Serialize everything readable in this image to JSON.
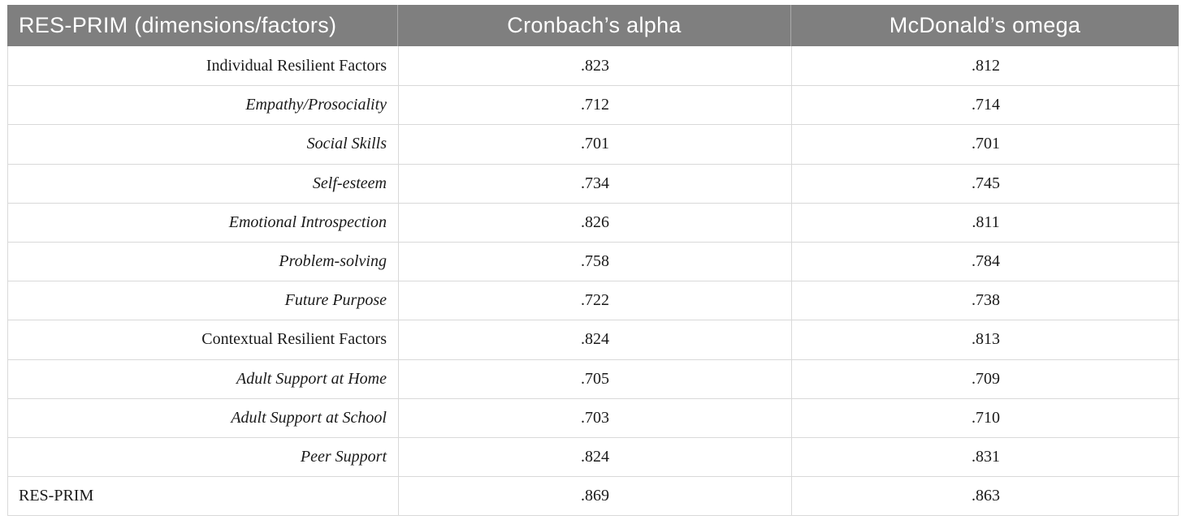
{
  "table": {
    "columns": [
      {
        "label": "RES-PRIM (dimensions/factors)"
      },
      {
        "label": "Cronbach’s alpha"
      },
      {
        "label": "McDonald’s omega"
      }
    ],
    "rows": [
      {
        "label": "Individual Resilient Factors",
        "italic": false,
        "align": "right",
        "alpha": ".823",
        "omega": ".812"
      },
      {
        "label": "Empathy/Prosociality",
        "italic": true,
        "align": "right",
        "alpha": ".712",
        "omega": ".714"
      },
      {
        "label": "Social Skills",
        "italic": true,
        "align": "right",
        "alpha": ".701",
        "omega": ".701"
      },
      {
        "label": "Self-esteem",
        "italic": true,
        "align": "right",
        "alpha": ".734",
        "omega": ".745"
      },
      {
        "label": "Emotional Introspection",
        "italic": true,
        "align": "right",
        "alpha": ".826",
        "omega": ".811"
      },
      {
        "label": "Problem-solving",
        "italic": true,
        "align": "right",
        "alpha": ".758",
        "omega": ".784"
      },
      {
        "label": "Future Purpose",
        "italic": true,
        "align": "right",
        "alpha": ".722",
        "omega": ".738"
      },
      {
        "label": "Contextual Resilient Factors",
        "italic": false,
        "align": "right",
        "alpha": ".824",
        "omega": ".813"
      },
      {
        "label": "Adult Support at Home",
        "italic": true,
        "align": "right",
        "alpha": ".705",
        "omega": ".709"
      },
      {
        "label": "Adult Support at School",
        "italic": true,
        "align": "right",
        "alpha": ".703",
        "omega": ".710"
      },
      {
        "label": "Peer Support",
        "italic": true,
        "align": "right",
        "alpha": ".824",
        "omega": ".831"
      },
      {
        "label": "RES-PRIM",
        "italic": false,
        "align": "left",
        "alpha": ".869",
        "omega": ".863"
      }
    ],
    "colors": {
      "header_bg": "#7f7f7f",
      "header_text": "#ffffff",
      "body_text": "#1a1a1a",
      "row_border": "#d9d9d9",
      "header_divider": "#a9a9a9"
    }
  }
}
